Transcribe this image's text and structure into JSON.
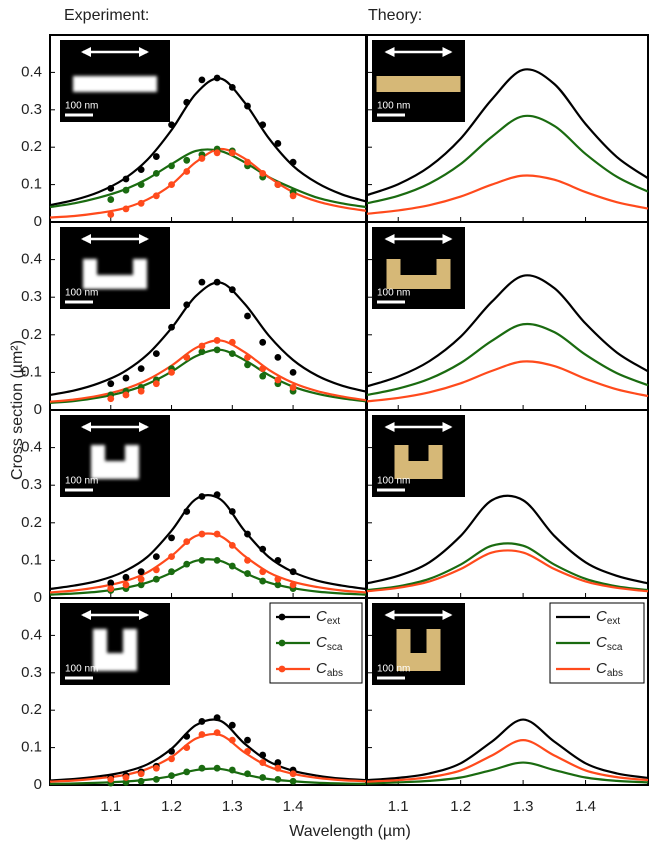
{
  "column_titles": [
    "Experiment:",
    "Theory:"
  ],
  "ylabel": "Cross section (µm²)",
  "xlabel": "Wavelength (µm)",
  "chart_data": [
    {
      "type": "line",
      "xlim": [
        1.0,
        1.52
      ],
      "ylim": [
        0,
        0.5
      ],
      "xticks": [
        1.1,
        1.2,
        1.3,
        1.4
      ],
      "yticks": [
        0,
        0.1,
        0.2,
        0.3,
        0.4
      ],
      "xtick_labels": false,
      "ytick_labels": true,
      "scale_bar": "100 nm",
      "x": [
        1.0,
        1.04,
        1.08,
        1.12,
        1.16,
        1.2,
        1.24,
        1.28,
        1.32,
        1.36,
        1.4,
        1.44,
        1.48,
        1.52
      ],
      "series": [
        {
          "name": "Cext",
          "color": "#000000",
          "values": [
            0.045,
            0.059,
            0.08,
            0.113,
            0.166,
            0.246,
            0.343,
            0.384,
            0.32,
            0.224,
            0.15,
            0.104,
            0.074,
            0.055
          ]
        },
        {
          "name": "Csca",
          "color": "#1a6b10",
          "values": [
            0.04,
            0.05,
            0.065,
            0.085,
            0.115,
            0.155,
            0.19,
            0.19,
            0.16,
            0.12,
            0.09,
            0.065,
            0.05,
            0.04
          ]
        },
        {
          "name": "Cabs",
          "color": "#ff4a1c",
          "values": [
            0.012,
            0.016,
            0.024,
            0.036,
            0.06,
            0.1,
            0.16,
            0.195,
            0.17,
            0.12,
            0.08,
            0.055,
            0.04,
            0.03
          ]
        }
      ],
      "scatter": {
        "x": [
          1.1,
          1.125,
          1.15,
          1.175,
          1.2,
          1.225,
          1.25,
          1.275,
          1.3,
          1.325,
          1.35,
          1.375,
          1.4
        ],
        "values": [
          [
            0.09,
            0.115,
            0.14,
            0.175,
            0.26,
            0.32,
            0.38,
            0.385,
            0.36,
            0.31,
            0.26,
            0.21,
            0.16
          ],
          [
            0.06,
            0.085,
            0.1,
            0.13,
            0.15,
            0.165,
            0.18,
            0.195,
            0.19,
            0.15,
            0.12,
            0.1,
            0.08
          ],
          [
            0.02,
            0.035,
            0.05,
            0.07,
            0.1,
            0.135,
            0.17,
            0.185,
            0.185,
            0.16,
            0.13,
            0.1,
            0.07
          ]
        ]
      }
    },
    {
      "type": "line",
      "xlim": [
        1.05,
        1.5
      ],
      "ylim": [
        0,
        0.5
      ],
      "xticks": [
        1.1,
        1.2,
        1.3,
        1.4
      ],
      "yticks": [
        0,
        0.1,
        0.2,
        0.3,
        0.4
      ],
      "xtick_labels": false,
      "ytick_labels": false,
      "scale_bar": "100 nm",
      "x": [
        1.05,
        1.1,
        1.15,
        1.2,
        1.25,
        1.3,
        1.35,
        1.4,
        1.45,
        1.5
      ],
      "series": [
        {
          "name": "Cext",
          "color": "#000000",
          "values": [
            0.072,
            0.101,
            0.148,
            0.223,
            0.328,
            0.407,
            0.369,
            0.262,
            0.174,
            0.117
          ]
        },
        {
          "name": "Csca",
          "color": "#1a6b10",
          "values": [
            0.05,
            0.07,
            0.103,
            0.155,
            0.228,
            0.283,
            0.257,
            0.182,
            0.121,
            0.081
          ]
        },
        {
          "name": "Cabs",
          "color": "#ff4a1c",
          "values": [
            0.022,
            0.031,
            0.045,
            0.068,
            0.1,
            0.124,
            0.113,
            0.08,
            0.053,
            0.036
          ]
        }
      ]
    },
    {
      "type": "line",
      "xlim": [
        1.0,
        1.52
      ],
      "ylim": [
        0,
        0.5
      ],
      "xticks": [
        1.1,
        1.2,
        1.3,
        1.4
      ],
      "yticks": [
        0,
        0.1,
        0.2,
        0.3,
        0.4
      ],
      "xtick_labels": false,
      "ytick_labels": true,
      "scale_bar": "100 nm",
      "x": [
        1.0,
        1.04,
        1.08,
        1.12,
        1.16,
        1.2,
        1.24,
        1.28,
        1.32,
        1.36,
        1.4,
        1.44,
        1.48,
        1.52
      ],
      "series": [
        {
          "name": "Cext",
          "color": "#000000",
          "values": [
            0.04,
            0.052,
            0.071,
            0.1,
            0.147,
            0.218,
            0.303,
            0.339,
            0.283,
            0.198,
            0.133,
            0.091,
            0.065,
            0.049
          ]
        },
        {
          "name": "Csca",
          "color": "#1a6b10",
          "values": [
            0.019,
            0.024,
            0.033,
            0.047,
            0.069,
            0.102,
            0.143,
            0.16,
            0.133,
            0.093,
            0.062,
            0.043,
            0.031,
            0.023
          ]
        },
        {
          "name": "Cabs",
          "color": "#ff4a1c",
          "values": [
            0.022,
            0.028,
            0.038,
            0.054,
            0.08,
            0.118,
            0.165,
            0.185,
            0.154,
            0.107,
            0.072,
            0.05,
            0.036,
            0.026
          ]
        }
      ],
      "scatter": {
        "x": [
          1.1,
          1.125,
          1.15,
          1.175,
          1.2,
          1.225,
          1.25,
          1.275,
          1.3,
          1.325,
          1.35,
          1.375,
          1.4
        ],
        "values": [
          [
            0.07,
            0.085,
            0.11,
            0.15,
            0.22,
            0.28,
            0.34,
            0.34,
            0.32,
            0.25,
            0.18,
            0.14,
            0.1
          ],
          [
            0.04,
            0.05,
            0.06,
            0.08,
            0.11,
            0.14,
            0.155,
            0.16,
            0.15,
            0.12,
            0.09,
            0.07,
            0.05
          ],
          [
            0.03,
            0.04,
            0.05,
            0.07,
            0.1,
            0.14,
            0.17,
            0.185,
            0.18,
            0.14,
            0.11,
            0.08,
            0.06
          ]
        ]
      }
    },
    {
      "type": "line",
      "xlim": [
        1.05,
        1.5
      ],
      "ylim": [
        0,
        0.5
      ],
      "xticks": [
        1.1,
        1.2,
        1.3,
        1.4
      ],
      "yticks": [
        0,
        0.1,
        0.2,
        0.3,
        0.4
      ],
      "xtick_labels": false,
      "ytick_labels": false,
      "scale_bar": "100 nm",
      "x": [
        1.05,
        1.1,
        1.15,
        1.2,
        1.25,
        1.3,
        1.35,
        1.4,
        1.45,
        1.5
      ],
      "series": [
        {
          "name": "Cext",
          "color": "#000000",
          "values": [
            0.063,
            0.089,
            0.13,
            0.195,
            0.288,
            0.357,
            0.324,
            0.23,
            0.153,
            0.103
          ]
        },
        {
          "name": "Csca",
          "color": "#1a6b10",
          "values": [
            0.04,
            0.057,
            0.083,
            0.125,
            0.184,
            0.228,
            0.207,
            0.147,
            0.098,
            0.066
          ]
        },
        {
          "name": "Cabs",
          "color": "#ff4a1c",
          "values": [
            0.023,
            0.032,
            0.047,
            0.071,
            0.104,
            0.129,
            0.117,
            0.083,
            0.055,
            0.037
          ]
        }
      ]
    },
    {
      "type": "line",
      "xlim": [
        1.0,
        1.52
      ],
      "ylim": [
        0,
        0.5
      ],
      "xticks": [
        1.1,
        1.2,
        1.3,
        1.4
      ],
      "yticks": [
        0,
        0.1,
        0.2,
        0.3,
        0.4
      ],
      "xtick_labels": false,
      "ytick_labels": true,
      "scale_bar": "100 nm",
      "x": [
        1.0,
        1.04,
        1.08,
        1.12,
        1.16,
        1.2,
        1.24,
        1.28,
        1.32,
        1.36,
        1.4,
        1.44,
        1.48,
        1.52
      ],
      "series": [
        {
          "name": "Cext",
          "color": "#000000",
          "values": [
            0.024,
            0.033,
            0.046,
            0.069,
            0.109,
            0.179,
            0.263,
            0.263,
            0.179,
            0.109,
            0.069,
            0.046,
            0.033,
            0.024
          ]
        },
        {
          "name": "Csca",
          "color": "#1a6b10",
          "values": [
            0.009,
            0.012,
            0.017,
            0.026,
            0.041,
            0.067,
            0.099,
            0.099,
            0.067,
            0.041,
            0.026,
            0.017,
            0.012,
            0.009
          ]
        },
        {
          "name": "Cabs",
          "color": "#ff4a1c",
          "values": [
            0.015,
            0.02,
            0.029,
            0.043,
            0.068,
            0.112,
            0.165,
            0.165,
            0.112,
            0.068,
            0.043,
            0.029,
            0.02,
            0.015
          ]
        }
      ],
      "scatter": {
        "x": [
          1.1,
          1.125,
          1.15,
          1.175,
          1.2,
          1.225,
          1.25,
          1.275,
          1.3,
          1.325,
          1.35,
          1.375,
          1.4
        ],
        "values": [
          [
            0.04,
            0.055,
            0.07,
            0.11,
            0.16,
            0.23,
            0.27,
            0.275,
            0.23,
            0.17,
            0.13,
            0.1,
            0.07
          ],
          [
            0.02,
            0.025,
            0.035,
            0.05,
            0.07,
            0.09,
            0.1,
            0.1,
            0.085,
            0.065,
            0.045,
            0.035,
            0.025
          ],
          [
            0.025,
            0.035,
            0.05,
            0.075,
            0.11,
            0.15,
            0.17,
            0.17,
            0.14,
            0.1,
            0.07,
            0.05,
            0.035
          ]
        ]
      }
    },
    {
      "type": "line",
      "xlim": [
        1.05,
        1.5
      ],
      "ylim": [
        0,
        0.5
      ],
      "xticks": [
        1.1,
        1.2,
        1.3,
        1.4
      ],
      "yticks": [
        0,
        0.1,
        0.2,
        0.3,
        0.4
      ],
      "xtick_labels": false,
      "ytick_labels": false,
      "scale_bar": "100 nm",
      "x": [
        1.05,
        1.1,
        1.15,
        1.2,
        1.25,
        1.3,
        1.35,
        1.4,
        1.45,
        1.5
      ],
      "series": [
        {
          "name": "Cext",
          "color": "#000000",
          "values": [
            0.039,
            0.059,
            0.095,
            0.165,
            0.26,
            0.26,
            0.165,
            0.095,
            0.059,
            0.039
          ]
        },
        {
          "name": "Csca",
          "color": "#1a6b10",
          "values": [
            0.021,
            0.031,
            0.051,
            0.089,
            0.139,
            0.139,
            0.089,
            0.051,
            0.031,
            0.021
          ]
        },
        {
          "name": "Cabs",
          "color": "#ff4a1c",
          "values": [
            0.018,
            0.027,
            0.044,
            0.077,
            0.121,
            0.121,
            0.077,
            0.044,
            0.027,
            0.018
          ]
        }
      ]
    },
    {
      "type": "line",
      "xlim": [
        1.0,
        1.52
      ],
      "ylim": [
        0,
        0.5
      ],
      "xticks": [
        1.1,
        1.2,
        1.3,
        1.4
      ],
      "yticks": [
        0,
        0.1,
        0.2,
        0.3,
        0.4
      ],
      "xtick_labels": true,
      "ytick_labels": true,
      "scale_bar": "100 nm",
      "legend": "upper right",
      "x": [
        1.0,
        1.04,
        1.08,
        1.12,
        1.16,
        1.2,
        1.24,
        1.28,
        1.32,
        1.36,
        1.4,
        1.44,
        1.48,
        1.52
      ],
      "series": [
        {
          "name": "Cext",
          "color": "#000000",
          "values": [
            0.012,
            0.016,
            0.023,
            0.034,
            0.055,
            0.097,
            0.16,
            0.172,
            0.111,
            0.063,
            0.038,
            0.025,
            0.017,
            0.013
          ]
        },
        {
          "name": "Csca",
          "color": "#1a6b10",
          "values": [
            0.003,
            0.004,
            0.006,
            0.009,
            0.014,
            0.024,
            0.04,
            0.043,
            0.028,
            0.016,
            0.01,
            0.006,
            0.004,
            0.003
          ]
        },
        {
          "name": "Cabs",
          "color": "#ff4a1c",
          "values": [
            0.009,
            0.012,
            0.018,
            0.026,
            0.043,
            0.075,
            0.124,
            0.134,
            0.087,
            0.049,
            0.03,
            0.019,
            0.013,
            0.01
          ]
        }
      ],
      "scatter": {
        "x": [
          1.1,
          1.125,
          1.15,
          1.175,
          1.2,
          1.225,
          1.25,
          1.275,
          1.3,
          1.325,
          1.35,
          1.375,
          1.4
        ],
        "values": [
          [
            0.02,
            0.025,
            0.035,
            0.05,
            0.09,
            0.13,
            0.17,
            0.18,
            0.16,
            0.12,
            0.08,
            0.06,
            0.04
          ],
          [
            0.005,
            0.007,
            0.01,
            0.015,
            0.025,
            0.035,
            0.045,
            0.045,
            0.04,
            0.03,
            0.02,
            0.015,
            0.01
          ],
          [
            0.015,
            0.02,
            0.03,
            0.045,
            0.07,
            0.1,
            0.135,
            0.14,
            0.12,
            0.09,
            0.06,
            0.045,
            0.03
          ]
        ]
      }
    },
    {
      "type": "line",
      "xlim": [
        1.05,
        1.5
      ],
      "ylim": [
        0,
        0.5
      ],
      "xticks": [
        1.1,
        1.2,
        1.3,
        1.4
      ],
      "yticks": [
        0,
        0.1,
        0.2,
        0.3,
        0.4
      ],
      "xtick_labels": true,
      "ytick_labels": false,
      "scale_bar": "100 nm",
      "legend": "upper right",
      "x": [
        1.05,
        1.1,
        1.15,
        1.2,
        1.25,
        1.3,
        1.35,
        1.4,
        1.45,
        1.5
      ],
      "series": [
        {
          "name": "Cext",
          "color": "#000000",
          "values": [
            0.013,
            0.019,
            0.031,
            0.058,
            0.116,
            0.175,
            0.116,
            0.058,
            0.031,
            0.019
          ]
        },
        {
          "name": "Csca",
          "color": "#1a6b10",
          "values": [
            0.004,
            0.007,
            0.011,
            0.02,
            0.04,
            0.06,
            0.04,
            0.02,
            0.011,
            0.007
          ]
        },
        {
          "name": "Cabs",
          "color": "#ff4a1c",
          "values": [
            0.009,
            0.013,
            0.021,
            0.039,
            0.079,
            0.12,
            0.079,
            0.039,
            0.021,
            0.013
          ]
        }
      ]
    }
  ]
}
